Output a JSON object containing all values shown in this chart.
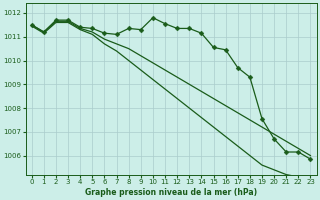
{
  "title": "Graphe pression niveau de la mer (hPa)",
  "bg_color": "#cceee8",
  "grid_color": "#aacccc",
  "line_color": "#1a5c1a",
  "xlim": [
    -0.5,
    23.5
  ],
  "ylim": [
    1005.2,
    1012.4
  ],
  "yticks": [
    1006,
    1007,
    1008,
    1009,
    1010,
    1011,
    1012
  ],
  "xticks": [
    0,
    1,
    2,
    3,
    4,
    5,
    6,
    7,
    8,
    9,
    10,
    11,
    12,
    13,
    14,
    15,
    16,
    17,
    18,
    19,
    20,
    21,
    22,
    23
  ],
  "series": [
    [
      1011.5,
      1011.2,
      1011.7,
      1011.7,
      1011.4,
      1011.35,
      1011.15,
      1011.1,
      1011.35,
      1011.3,
      1011.8,
      1011.55,
      1011.35,
      1011.35,
      1011.15,
      1010.55,
      1010.45,
      1009.7,
      1009.3,
      1007.55,
      1006.7,
      1006.15,
      1006.15,
      1005.85
    ],
    [
      1011.5,
      1011.2,
      1011.65,
      1011.65,
      1011.35,
      1011.2,
      1010.9,
      1010.7,
      1010.5,
      1010.2,
      1009.9,
      1009.6,
      1009.3,
      1009.0,
      1008.7,
      1008.4,
      1008.1,
      1007.8,
      1007.5,
      1007.2,
      1006.9,
      1006.6,
      1006.3,
      1006.0
    ],
    [
      1011.45,
      1011.15,
      1011.6,
      1011.6,
      1011.3,
      1011.1,
      1010.7,
      1010.4,
      1010.0,
      1009.6,
      1009.2,
      1008.8,
      1008.4,
      1008.0,
      1007.6,
      1007.2,
      1006.8,
      1006.4,
      1006.0,
      1005.6,
      1005.4,
      1005.2,
      1005.1,
      1005.0
    ]
  ],
  "x_values": [
    0,
    1,
    2,
    3,
    4,
    5,
    6,
    7,
    8,
    9,
    10,
    11,
    12,
    13,
    14,
    15,
    16,
    17,
    18,
    19,
    20,
    21,
    22,
    23
  ]
}
